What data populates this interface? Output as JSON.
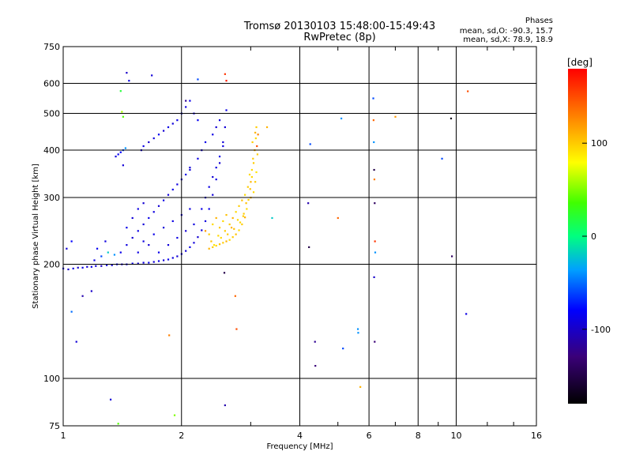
{
  "title_line1": "Tromsø 20130103 15:48:00-15:49:43",
  "title_line2": "RwPretec (8p)",
  "phases": {
    "header": "Phases",
    "line_o": "mean, sd,O: -90.3, 15.7",
    "line_x": "mean, sd,X:  78.9, 18.9"
  },
  "colorbar": {
    "label": "[deg]",
    "ticks": [
      {
        "value": 100,
        "label": "100"
      },
      {
        "value": 0,
        "label": "0"
      },
      {
        "value": -100,
        "label": "-100"
      }
    ],
    "range": [
      -180,
      180
    ]
  },
  "chart_data": {
    "type": "scatter",
    "xlabel": "Frequency [MHz]",
    "ylabel": "Stationary phase Virtual Height [km]",
    "x_scale": "log",
    "y_scale": "log",
    "xlim": [
      1,
      16
    ],
    "ylim": [
      75,
      750
    ],
    "x_ticks": [
      {
        "value": 1,
        "label": "1"
      },
      {
        "value": 2,
        "label": "2"
      },
      {
        "value": 4,
        "label": "4"
      },
      {
        "value": 6,
        "label": "6"
      },
      {
        "value": 8,
        "label": "8"
      },
      {
        "value": 10,
        "label": "10"
      },
      {
        "value": 16,
        "label": "16"
      }
    ],
    "y_ticks": [
      {
        "value": 75,
        "label": "75"
      },
      {
        "value": 100,
        "label": "100"
      },
      {
        "value": 200,
        "label": "200"
      },
      {
        "value": 300,
        "label": "300"
      },
      {
        "value": 400,
        "label": "400"
      },
      {
        "value": 500,
        "label": "500"
      },
      {
        "value": 600,
        "label": "600"
      },
      {
        "value": 750,
        "label": "750"
      }
    ],
    "x_grid": [
      1,
      2,
      4,
      6,
      8,
      10,
      16
    ],
    "y_grid": [
      100,
      200,
      300,
      400,
      500,
      600
    ],
    "x_minor_ticks": [
      3,
      5,
      7,
      9,
      12,
      14
    ],
    "grid": true,
    "series": [
      {
        "points": [
          [
            1.0,
            195,
            -95
          ],
          [
            1.03,
            194,
            -100
          ],
          [
            1.06,
            195,
            -92
          ],
          [
            1.09,
            196,
            -98
          ],
          [
            1.12,
            196,
            -90
          ],
          [
            1.15,
            197,
            -96
          ],
          [
            1.18,
            197,
            -88
          ],
          [
            1.21,
            198,
            -94
          ],
          [
            1.25,
            198,
            -100
          ],
          [
            1.29,
            199,
            -90
          ],
          [
            1.33,
            199,
            -95
          ],
          [
            1.37,
            200,
            -88
          ],
          [
            1.41,
            200,
            -96
          ],
          [
            1.45,
            200,
            -92
          ],
          [
            1.5,
            201,
            -90
          ],
          [
            1.55,
            201,
            -97
          ],
          [
            1.6,
            202,
            -93
          ],
          [
            1.65,
            202,
            -89
          ],
          [
            1.7,
            203,
            -95
          ],
          [
            1.75,
            204,
            -91
          ],
          [
            1.8,
            205,
            -94
          ],
          [
            1.85,
            206,
            -88
          ],
          [
            1.9,
            208,
            -92
          ],
          [
            1.95,
            210,
            -96
          ],
          [
            2.0,
            213,
            -90
          ],
          [
            2.05,
            217,
            -94
          ],
          [
            2.1,
            222,
            -89
          ],
          [
            2.15,
            228,
            -93
          ],
          [
            2.2,
            236,
            -97
          ],
          [
            2.25,
            246,
            -90
          ],
          [
            2.3,
            260,
            -92
          ],
          [
            2.35,
            280,
            -88
          ],
          [
            2.4,
            305,
            -94
          ],
          [
            2.45,
            335,
            -90
          ],
          [
            2.5,
            370,
            -96
          ],
          [
            2.55,
            410,
            -92
          ],
          [
            2.58,
            460,
            -95
          ],
          [
            2.6,
            510,
            -90
          ],
          [
            2.2,
            480,
            -85
          ],
          [
            2.15,
            500,
            -95
          ],
          [
            2.1,
            540,
            -88
          ],
          [
            2.05,
            520,
            -92
          ],
          [
            2.0,
            500,
            -80
          ],
          [
            1.95,
            480,
            -88
          ],
          [
            1.9,
            470,
            -94
          ],
          [
            1.85,
            460,
            -90
          ],
          [
            1.8,
            450,
            -96
          ],
          [
            1.75,
            440,
            -86
          ],
          [
            1.7,
            430,
            -92
          ],
          [
            1.65,
            420,
            -98
          ],
          [
            1.6,
            410,
            -90
          ],
          [
            1.58,
            400,
            -94
          ],
          [
            1.36,
            385,
            -92
          ],
          [
            1.38,
            390,
            -86
          ],
          [
            1.4,
            395,
            -80
          ],
          [
            1.42,
            400,
            -60
          ],
          [
            1.44,
            405,
            -40
          ],
          [
            1.4,
            215,
            -88
          ],
          [
            1.45,
            225,
            -92
          ],
          [
            1.5,
            235,
            -96
          ],
          [
            1.55,
            245,
            -90
          ],
          [
            1.6,
            255,
            -94
          ],
          [
            1.65,
            265,
            -88
          ],
          [
            1.7,
            275,
            -92
          ],
          [
            1.75,
            285,
            -96
          ],
          [
            1.8,
            295,
            -90
          ],
          [
            1.85,
            305,
            -94
          ],
          [
            1.9,
            315,
            -88
          ],
          [
            1.95,
            325,
            -92
          ],
          [
            2.0,
            335,
            -96
          ],
          [
            2.05,
            345,
            -90
          ],
          [
            2.1,
            355,
            -94
          ],
          [
            1.6,
            230,
            -92
          ],
          [
            1.7,
            240,
            -88
          ],
          [
            1.8,
            250,
            -94
          ],
          [
            1.9,
            260,
            -90
          ],
          [
            2.0,
            270,
            -96
          ],
          [
            2.1,
            280,
            -92
          ],
          [
            1.55,
            215,
            -90
          ],
          [
            1.65,
            225,
            -96
          ],
          [
            1.75,
            215,
            -88
          ],
          [
            1.85,
            225,
            -94
          ],
          [
            1.95,
            235,
            -90
          ],
          [
            2.05,
            245,
            -96
          ],
          [
            2.15,
            255,
            -92
          ],
          [
            2.25,
            280,
            -88
          ],
          [
            2.3,
            300,
            -94
          ],
          [
            2.35,
            320,
            -90
          ],
          [
            2.4,
            340,
            -96
          ],
          [
            2.45,
            360,
            -92
          ],
          [
            2.5,
            385,
            -88
          ],
          [
            2.55,
            420,
            -94
          ],
          [
            2.4,
            440,
            -90
          ],
          [
            2.45,
            460,
            -96
          ],
          [
            2.5,
            480,
            -92
          ],
          [
            2.3,
            420,
            -88
          ],
          [
            2.25,
            400,
            -94
          ],
          [
            2.2,
            380,
            -90
          ],
          [
            2.1,
            360,
            -96
          ],
          [
            1.2,
            205,
            -90
          ],
          [
            1.25,
            210,
            -60
          ],
          [
            1.3,
            215,
            -20
          ],
          [
            1.35,
            212,
            -40
          ],
          [
            1.22,
            220,
            -85
          ],
          [
            1.28,
            230,
            -92
          ],
          [
            1.45,
            250,
            -88
          ],
          [
            1.5,
            265,
            -94
          ],
          [
            1.55,
            280,
            -90
          ],
          [
            1.6,
            290,
            -96
          ],
          [
            1.02,
            220,
            -95
          ],
          [
            1.05,
            230,
            -80
          ],
          [
            1.05,
            150,
            -50
          ],
          [
            1.08,
            125,
            -95
          ],
          [
            1.18,
            170,
            -100
          ],
          [
            1.12,
            165,
            -110
          ],
          [
            1.32,
            88,
            -95
          ],
          [
            1.38,
            76,
            40
          ],
          [
            1.4,
            573,
            20
          ],
          [
            1.41,
            505,
            60
          ],
          [
            1.42,
            490,
            40
          ],
          [
            1.45,
            640,
            -100
          ],
          [
            1.47,
            610,
            -90
          ],
          [
            1.42,
            365,
            -95
          ],
          [
            1.68,
            630,
            -95
          ],
          [
            1.86,
            130,
            130
          ],
          [
            1.92,
            80,
            50
          ],
          [
            2.05,
            540,
            -120
          ],
          [
            2.2,
            615,
            -60
          ],
          [
            2.58,
            635,
            160
          ],
          [
            2.6,
            610,
            170
          ],
          [
            2.57,
            190,
            -150
          ],
          [
            2.58,
            85,
            -110
          ],
          [
            2.74,
            165,
            140
          ],
          [
            2.76,
            135,
            150
          ],
          [
            3.4,
            265,
            -20
          ],
          [
            4.2,
            290,
            -110
          ],
          [
            4.22,
            222,
            -150
          ],
          [
            4.25,
            415,
            -60
          ],
          [
            4.37,
            125,
            -120
          ],
          [
            4.38,
            108,
            -130
          ],
          [
            5.0,
            265,
            140
          ],
          [
            5.1,
            485,
            -40
          ],
          [
            5.15,
            120,
            -60
          ],
          [
            5.62,
            135,
            -40
          ],
          [
            5.63,
            132,
            -40
          ],
          [
            5.7,
            95,
            110
          ],
          [
            6.15,
            548,
            -60
          ],
          [
            6.16,
            480,
            140
          ],
          [
            6.17,
            420,
            -40
          ],
          [
            6.18,
            355,
            -150
          ],
          [
            6.19,
            335,
            130
          ],
          [
            6.2,
            290,
            -140
          ],
          [
            6.21,
            230,
            160
          ],
          [
            6.22,
            215,
            -40
          ],
          [
            6.18,
            185,
            -100
          ],
          [
            6.2,
            125,
            -130
          ],
          [
            7.0,
            490,
            120
          ],
          [
            9.2,
            380,
            -60
          ],
          [
            9.7,
            485,
            -170
          ],
          [
            9.75,
            210,
            -140
          ],
          [
            10.6,
            148,
            -90
          ],
          [
            10.7,
            572,
            150
          ]
        ]
      },
      {
        "points": [
          [
            2.35,
            220,
            110
          ],
          [
            2.4,
            222,
            100
          ],
          [
            2.45,
            224,
            95
          ],
          [
            2.5,
            226,
            105
          ],
          [
            2.55,
            228,
            100
          ],
          [
            2.6,
            230,
            110
          ],
          [
            2.65,
            232,
            95
          ],
          [
            2.7,
            236,
            100
          ],
          [
            2.75,
            240,
            105
          ],
          [
            2.8,
            246,
            95
          ],
          [
            2.85,
            255,
            100
          ],
          [
            2.9,
            266,
            110
          ],
          [
            2.93,
            280,
            95
          ],
          [
            2.96,
            296,
            100
          ],
          [
            2.99,
            316,
            105
          ],
          [
            3.02,
            340,
            95
          ],
          [
            3.05,
            370,
            100
          ],
          [
            3.07,
            400,
            110
          ],
          [
            3.09,
            430,
            95
          ],
          [
            3.1,
            460,
            100
          ],
          [
            2.35,
            240,
            100
          ],
          [
            2.4,
            255,
            95
          ],
          [
            2.45,
            265,
            110
          ],
          [
            2.5,
            250,
            100
          ],
          [
            2.55,
            260,
            95
          ],
          [
            2.6,
            270,
            105
          ],
          [
            2.65,
            255,
            100
          ],
          [
            2.7,
            265,
            110
          ],
          [
            2.75,
            275,
            95
          ],
          [
            2.8,
            285,
            100
          ],
          [
            2.85,
            295,
            105
          ],
          [
            2.9,
            305,
            95
          ],
          [
            2.95,
            320,
            100
          ],
          [
            3.0,
            330,
            110
          ],
          [
            3.02,
            355,
            95
          ],
          [
            3.04,
            380,
            100
          ],
          [
            2.38,
            230,
            105
          ],
          [
            2.48,
            238,
            95
          ],
          [
            2.58,
            245,
            100
          ],
          [
            2.68,
            250,
            110
          ],
          [
            2.78,
            262,
            95
          ],
          [
            2.88,
            272,
            100
          ],
          [
            2.92,
            290,
            105
          ],
          [
            2.98,
            345,
            95
          ],
          [
            3.03,
            420,
            100
          ],
          [
            3.08,
            445,
            110
          ],
          [
            2.3,
            245,
            120
          ],
          [
            2.42,
            225,
            90
          ],
          [
            2.52,
            235,
            95
          ],
          [
            2.62,
            240,
            100
          ],
          [
            2.72,
            248,
            105
          ],
          [
            2.82,
            258,
            95
          ],
          [
            2.87,
            268,
            100
          ],
          [
            3.0,
            300,
            110
          ],
          [
            3.05,
            310,
            95
          ],
          [
            3.08,
            330,
            100
          ],
          [
            3.1,
            350,
            90
          ],
          [
            3.12,
            390,
            100
          ],
          [
            3.3,
            460,
            110
          ],
          [
            3.11,
            410,
            150
          ],
          [
            3.13,
            440,
            130
          ]
        ]
      }
    ]
  }
}
